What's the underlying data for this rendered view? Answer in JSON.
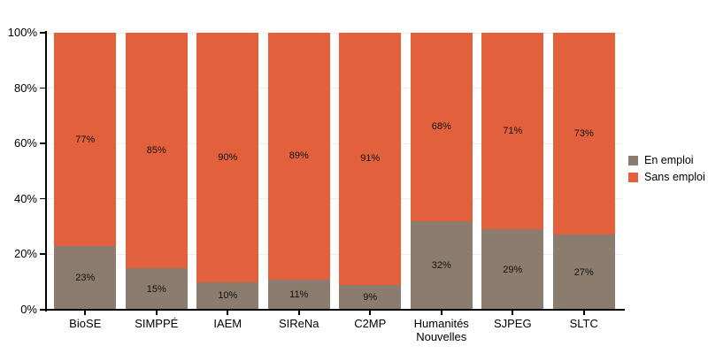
{
  "chart_data": {
    "type": "bar",
    "stacked": true,
    "orientation": "vertical",
    "title": "",
    "xlabel": "",
    "ylabel": "",
    "categories": [
      "BioSE",
      "SIMPPÉ",
      "IAEM",
      "SIReNa",
      "C2MP",
      "Humanités Nouvelles",
      "SJPEG",
      "SLTC"
    ],
    "series": [
      {
        "name": "En emploi",
        "color": "#8B7C6E",
        "values": [
          23,
          15,
          10,
          11,
          9,
          32,
          29,
          27
        ]
      },
      {
        "name": "Sans emploi",
        "color": "#E2613C",
        "values": [
          77,
          85,
          90,
          89,
          91,
          68,
          71,
          73
        ]
      }
    ],
    "value_suffix": "%",
    "y_axis": {
      "min": 0,
      "max": 100,
      "tick_values": [
        0,
        20,
        40,
        60,
        80,
        100
      ],
      "tick_labels": [
        "0%",
        "20%",
        "40%",
        "60%",
        "80%",
        "100%"
      ]
    },
    "grid": true,
    "legend_position": "right",
    "background_color": "#ffffff",
    "axis_color": "#000000",
    "gridline_color": "#efedeb",
    "bar_value_labels": {
      "En emploi": [
        "23%",
        "15%",
        "10%",
        "11%",
        "9%",
        "32%",
        "29%",
        "27%"
      ],
      "Sans emploi": [
        "77%",
        "85%",
        "90%",
        "89%",
        "91%",
        "68%",
        "71%",
        "73%"
      ]
    }
  }
}
